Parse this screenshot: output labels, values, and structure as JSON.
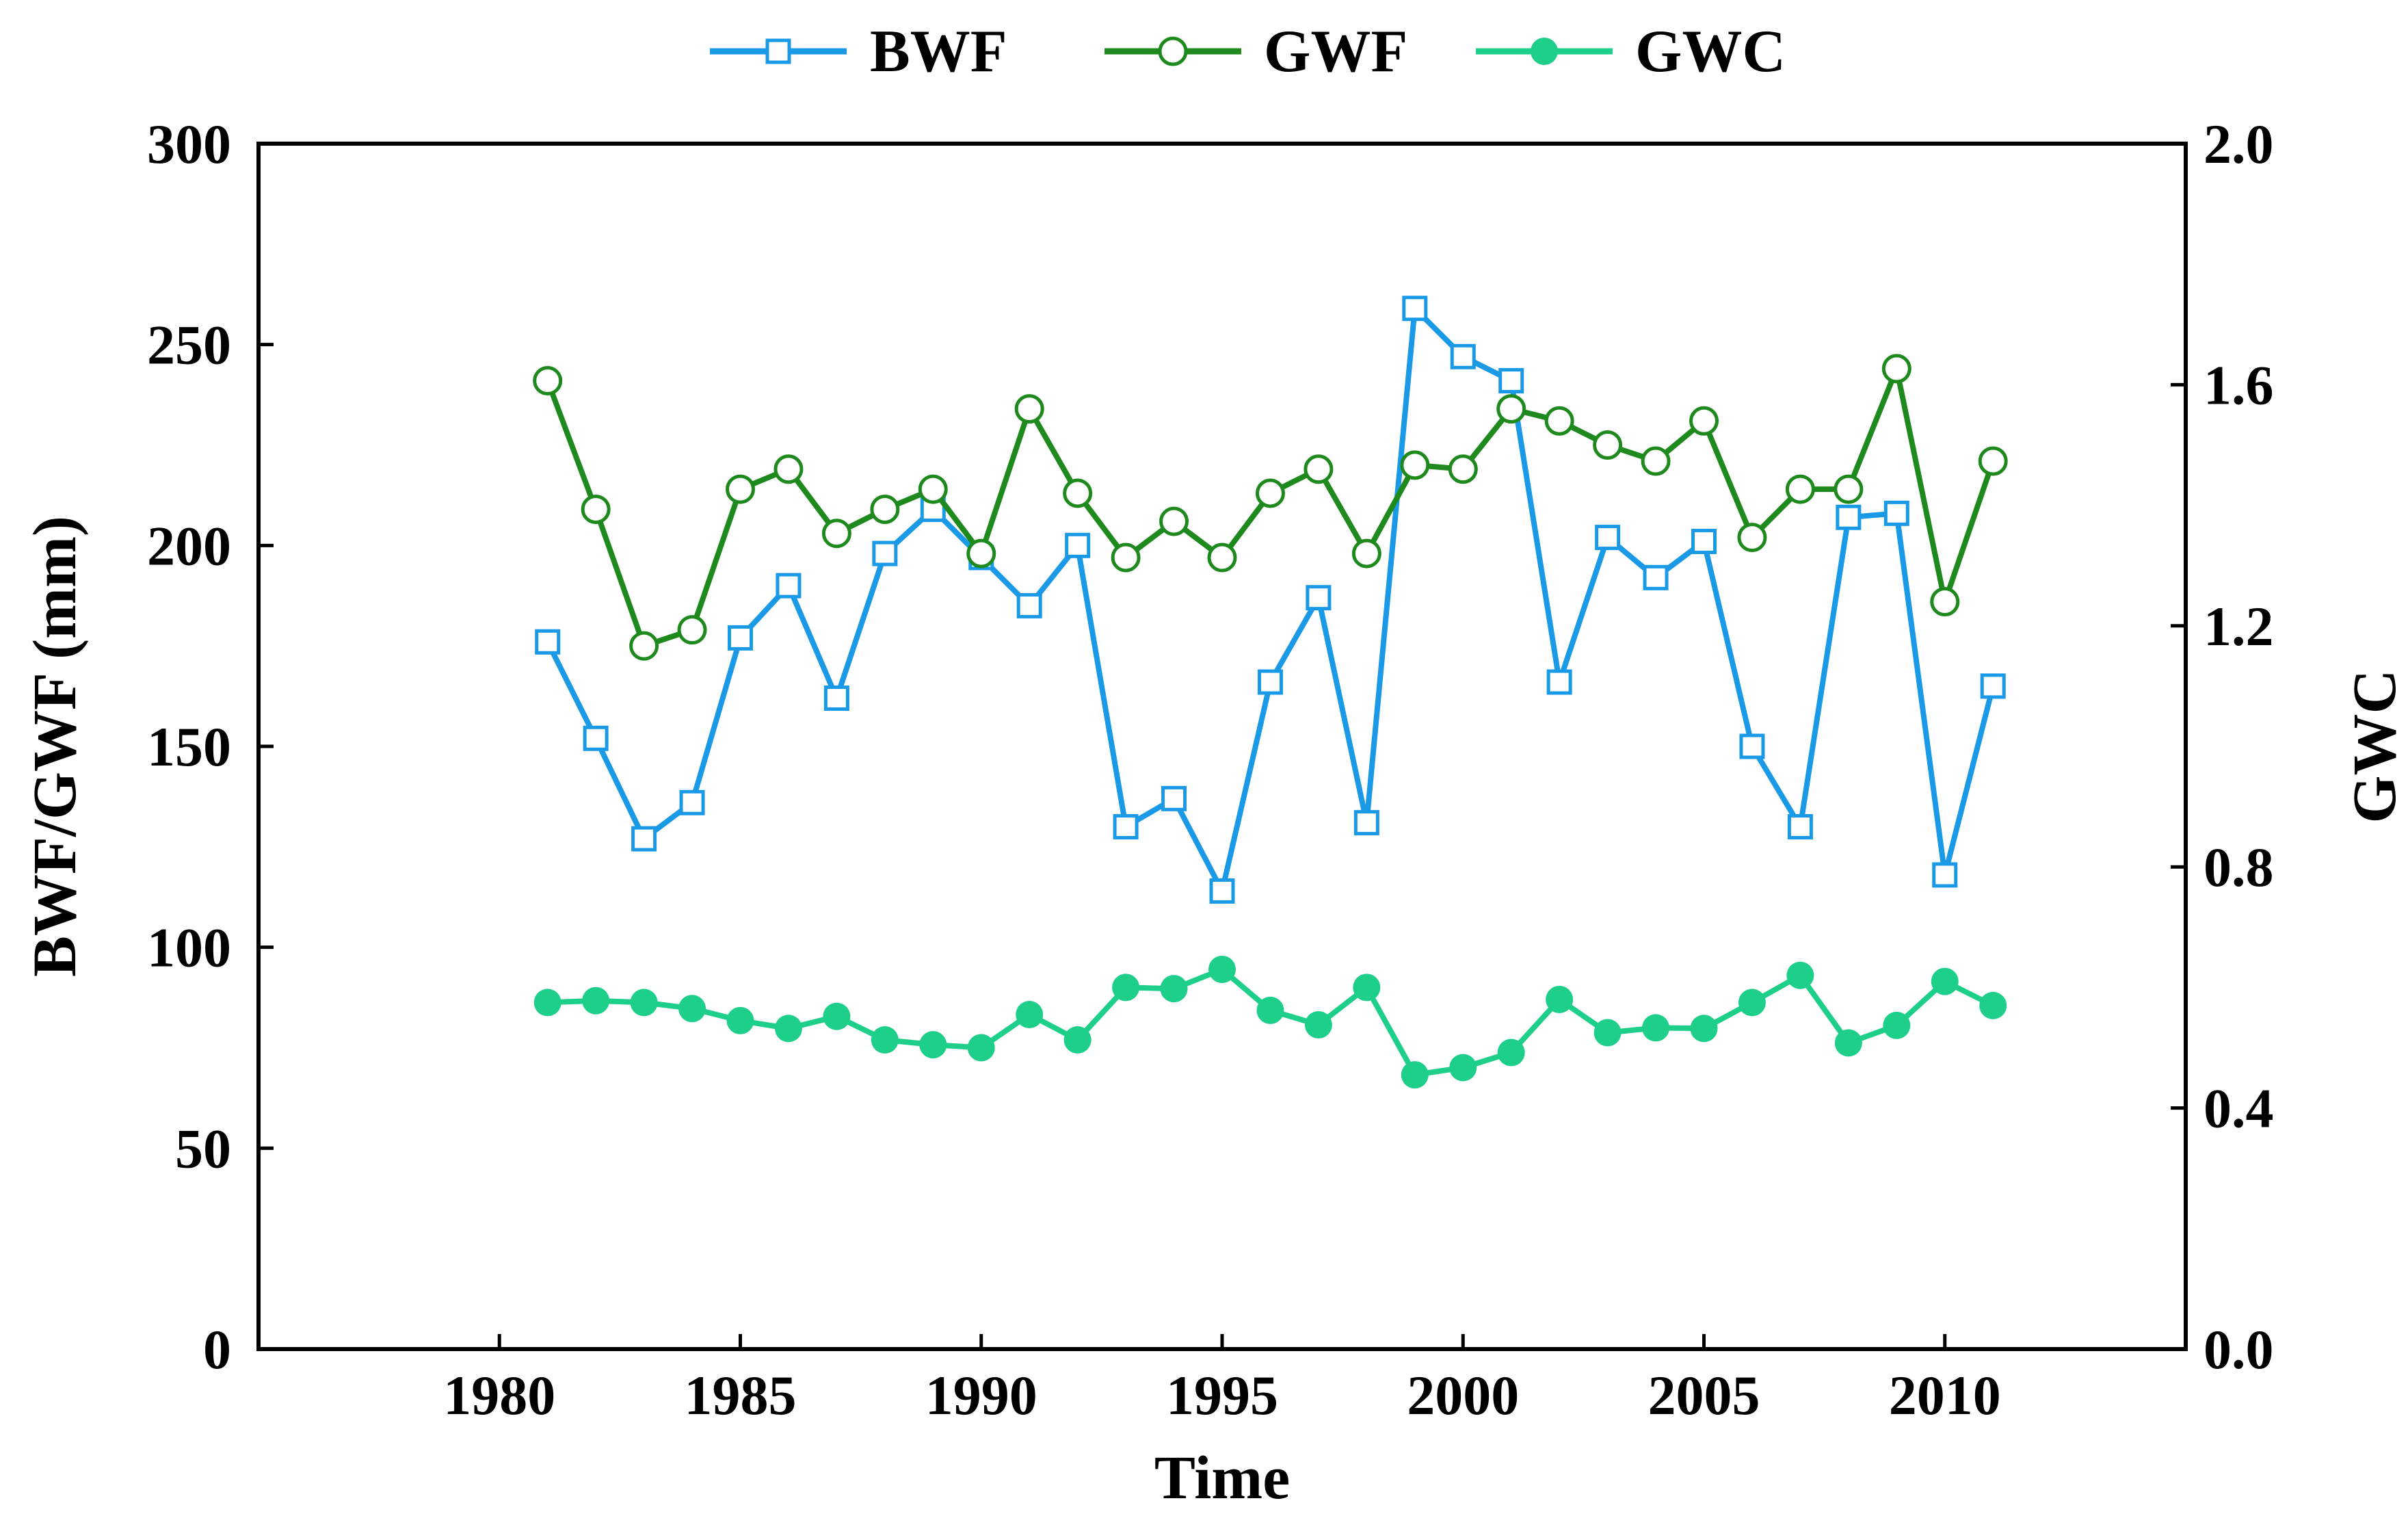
{
  "chart_data": {
    "type": "line",
    "title": "",
    "xlabel": "Time",
    "ylabel": "BWF/GWF (mm)",
    "y2label": "GWC",
    "xlim": [
      1975,
      2015
    ],
    "ylim": [
      0,
      300
    ],
    "y2lim": [
      0,
      2.0
    ],
    "xticks": [
      "1980",
      "1985",
      "1990",
      "1995",
      "2000",
      "2005",
      "2010"
    ],
    "yticks": [
      "0",
      "50",
      "100",
      "150",
      "200",
      "250",
      "300"
    ],
    "y2ticks": [
      "0.0",
      "0.4",
      "0.8",
      "1.2",
      "1.6",
      "2.0"
    ],
    "legend_position": "top",
    "x": [
      1981,
      1982,
      1983,
      1984,
      1985,
      1986,
      1987,
      1988,
      1989,
      1990,
      1991,
      1992,
      1993,
      1994,
      1995,
      1996,
      1997,
      1998,
      1999,
      2000,
      2001,
      2002,
      2003,
      2004,
      2005,
      2006,
      2007,
      2008,
      2009,
      2010,
      2011
    ],
    "series": [
      {
        "name": "BWF",
        "axis": "left",
        "color": "#1a9ae6",
        "marker": "open-square",
        "values": [
          176,
          152,
          127,
          136,
          177,
          190,
          162,
          198,
          209,
          197,
          185,
          200,
          130,
          137,
          114,
          166,
          187,
          131,
          259,
          247,
          241,
          166,
          202,
          192,
          201,
          150,
          130,
          207,
          208,
          118,
          165
        ]
      },
      {
        "name": "GWF",
        "axis": "left",
        "color": "#1e8a1e",
        "marker": "open-circle",
        "values": [
          241,
          209,
          175,
          179,
          214,
          219,
          203,
          209,
          214,
          198,
          234,
          213,
          197,
          206,
          197,
          213,
          219,
          198,
          220,
          219,
          234,
          231,
          225,
          221,
          231,
          202,
          214,
          214,
          244,
          186,
          221
        ]
      },
      {
        "name": "GWC",
        "axis": "right",
        "color": "#1ecf8a",
        "marker": "filled-circle",
        "values": [
          0.575,
          0.578,
          0.575,
          0.565,
          0.545,
          0.532,
          0.552,
          0.513,
          0.505,
          0.5,
          0.555,
          0.513,
          0.6,
          0.598,
          0.63,
          0.562,
          0.538,
          0.6,
          0.455,
          0.467,
          0.492,
          0.58,
          0.525,
          0.533,
          0.532,
          0.575,
          0.62,
          0.508,
          0.537,
          0.61,
          0.57
        ]
      }
    ]
  }
}
